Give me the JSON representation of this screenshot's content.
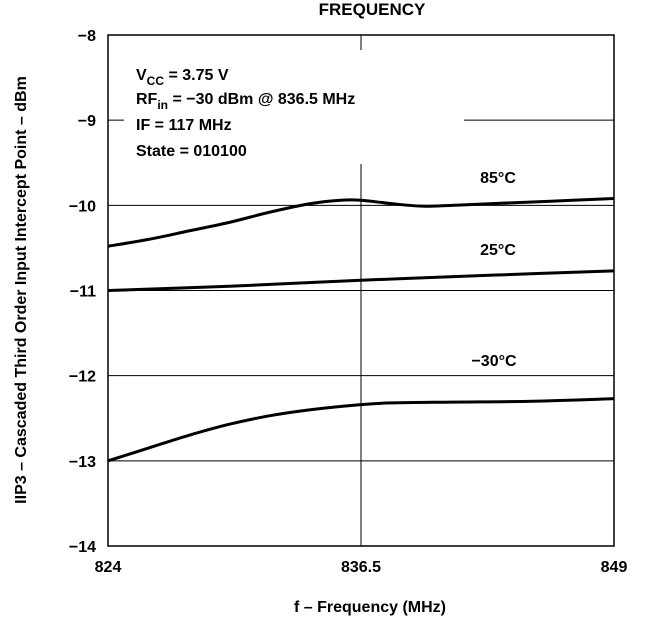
{
  "chart_data": {
    "type": "line",
    "title": "FREQUENCY",
    "xlabel": "f – Frequency (MHz)",
    "ylabel": "IIP3 – Cascaded Third Order Input Intercept Point – dBm",
    "xlim": [
      824,
      849
    ],
    "ylim": [
      -14,
      -8
    ],
    "x_ticks": [
      "824",
      "836.5",
      "849"
    ],
    "y_ticks": [
      "−8",
      "−9",
      "−10",
      "−11",
      "−12",
      "−13",
      "−14"
    ],
    "grid": true,
    "annotation": {
      "vcc_main": "V",
      "vcc_sub": "CC",
      "vcc_value": " = 3.75 V",
      "rf_main": "RF",
      "rf_sub": "in",
      "rf_value": " = −30 dBm @ 836.5 MHz",
      "if_line": "IF = 117 MHz",
      "state_line": "State = 010100"
    },
    "series": [
      {
        "name": "85°C",
        "x": [
          824,
          826,
          828,
          830,
          832,
          834,
          835.5,
          836.5,
          838,
          839.5,
          841,
          843,
          846,
          849
        ],
        "y": [
          -10.48,
          -10.4,
          -10.3,
          -10.2,
          -10.08,
          -9.98,
          -9.94,
          -9.94,
          -9.98,
          -10.01,
          -10.0,
          -9.98,
          -9.95,
          -9.92
        ]
      },
      {
        "name": "25°C",
        "x": [
          824,
          830,
          836.5,
          843,
          849
        ],
        "y": [
          -11.0,
          -10.95,
          -10.88,
          -10.82,
          -10.77
        ]
      },
      {
        "name": "−30°C",
        "x": [
          824,
          826,
          828,
          830,
          832,
          834,
          836.5,
          838,
          841,
          845,
          849
        ],
        "y": [
          -13.0,
          -12.85,
          -12.7,
          -12.57,
          -12.47,
          -12.4,
          -12.34,
          -12.32,
          -12.31,
          -12.3,
          -12.27
        ]
      }
    ]
  }
}
